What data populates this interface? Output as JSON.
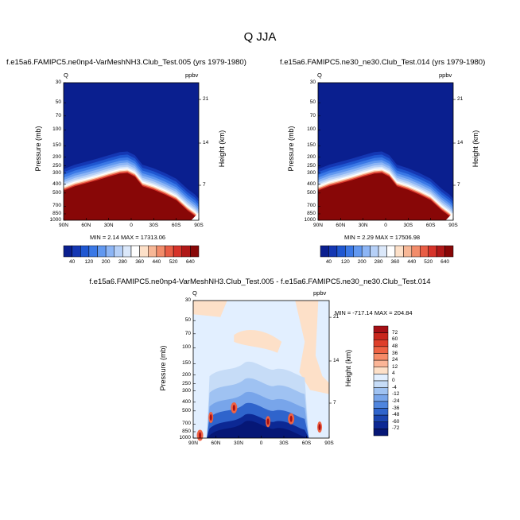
{
  "figure": {
    "title": "Q JJA"
  },
  "chart_data": [
    {
      "type": "heatmap",
      "name": "model-1",
      "title": "f.e15a6.FAMIPC5.ne0np4-VarMeshNH3.Club_Test.005 (yrs 1979-1980)",
      "variable": "Q",
      "units": "ppbv",
      "xlabel": "",
      "ylabel": "Pressure (mb)",
      "y2label": "Height (km)",
      "x_ticks": [
        "90N",
        "60N",
        "30N",
        "0",
        "30S",
        "60S",
        "90S"
      ],
      "y_ticks": [
        "30",
        "50",
        "70",
        "100",
        "150",
        "200",
        "250",
        "300",
        "400",
        "500",
        "700",
        "850",
        "1000"
      ],
      "y2_ticks": [
        "21",
        "14",
        "7"
      ],
      "min_max": "MIN =   2.14  MAX = 17313.06",
      "colorbar_labels": [
        "40",
        "120",
        "200",
        "280",
        "360",
        "440",
        "520",
        "640"
      ],
      "colorbar_colors": [
        "#0a1f8f",
        "#1437b3",
        "#1f57d1",
        "#3a78e6",
        "#6198f0",
        "#8cb5f5",
        "#b6d0f7",
        "#dbe8fa",
        "#ffffff",
        "#fde0c8",
        "#f7b796",
        "#f28c6a",
        "#e85d45",
        "#d6332a",
        "#b01818",
        "#880707"
      ],
      "description_text": "",
      "boundary_profile": [
        {
          "lat": 90,
          "p": 470
        },
        {
          "lat": 75,
          "p": 420
        },
        {
          "lat": 60,
          "p": 390
        },
        {
          "lat": 45,
          "p": 360
        },
        {
          "lat": 30,
          "p": 330
        },
        {
          "lat": 15,
          "p": 305
        },
        {
          "lat": 5,
          "p": 300
        },
        {
          "lat": -5,
          "p": 330
        },
        {
          "lat": -15,
          "p": 420
        },
        {
          "lat": -30,
          "p": 460
        },
        {
          "lat": -45,
          "p": 520
        },
        {
          "lat": -60,
          "p": 600
        },
        {
          "lat": -75,
          "p": 780
        },
        {
          "lat": -85,
          "p": 900
        },
        {
          "lat": -90,
          "p": 1000
        }
      ]
    },
    {
      "type": "heatmap",
      "name": "model-2",
      "title": "f.e15a6.FAMIPC5.ne30_ne30.Club_Test.014 (yrs 1979-1980)",
      "variable": "Q",
      "units": "ppbv",
      "ylabel": "Pressure (mb)",
      "y2label": "Height (km)",
      "x_ticks": [
        "90N",
        "60N",
        "30N",
        "0",
        "30S",
        "60S",
        "90S"
      ],
      "y_ticks": [
        "30",
        "50",
        "70",
        "100",
        "150",
        "200",
        "250",
        "300",
        "400",
        "500",
        "700",
        "850",
        "1000"
      ],
      "y2_ticks": [
        "21",
        "14",
        "7"
      ],
      "min_max": "MIN =   2.29  MAX = 17506.98",
      "colorbar_labels": [
        "40",
        "120",
        "200",
        "280",
        "360",
        "440",
        "520",
        "640"
      ],
      "colorbar_colors": [
        "#0a1f8f",
        "#1437b3",
        "#1f57d1",
        "#3a78e6",
        "#6198f0",
        "#8cb5f5",
        "#b6d0f7",
        "#dbe8fa",
        "#ffffff",
        "#fde0c8",
        "#f7b796",
        "#f28c6a",
        "#e85d45",
        "#d6332a",
        "#b01818",
        "#880707"
      ],
      "boundary_profile": [
        {
          "lat": 90,
          "p": 470
        },
        {
          "lat": 75,
          "p": 420
        },
        {
          "lat": 60,
          "p": 390
        },
        {
          "lat": 45,
          "p": 360
        },
        {
          "lat": 30,
          "p": 330
        },
        {
          "lat": 15,
          "p": 305
        },
        {
          "lat": 5,
          "p": 300
        },
        {
          "lat": -5,
          "p": 330
        },
        {
          "lat": -15,
          "p": 420
        },
        {
          "lat": -30,
          "p": 460
        },
        {
          "lat": -45,
          "p": 520
        },
        {
          "lat": -60,
          "p": 600
        },
        {
          "lat": -75,
          "p": 780
        },
        {
          "lat": -85,
          "p": 900
        },
        {
          "lat": -90,
          "p": 1000
        }
      ]
    },
    {
      "type": "heatmap",
      "name": "difference",
      "title": "f.e15a6.FAMIPC5.ne0np4-VarMeshNH3.Club_Test.005 - f.e15a6.FAMIPC5.ne30_ne30.Club_Test.014",
      "variable": "Q",
      "units": "ppbv",
      "ylabel": "Pressure (mb)",
      "y2label": "Height (km)",
      "x_ticks": [
        "90N",
        "60N",
        "30N",
        "0",
        "30S",
        "60S",
        "90S"
      ],
      "y_ticks": [
        "30",
        "50",
        "70",
        "100",
        "150",
        "200",
        "250",
        "300",
        "400",
        "500",
        "700",
        "850",
        "1000"
      ],
      "y2_ticks": [
        "21",
        "14",
        "7"
      ],
      "min_max": "MIN = -717.14  MAX = 204.84",
      "colorbar_labels": [
        "72",
        "60",
        "48",
        "36",
        "24",
        "12",
        "4",
        "0",
        "-4",
        "-12",
        "-24",
        "-36",
        "-48",
        "-60",
        "-72"
      ],
      "colorbar_colors": [
        "#a50f15",
        "#c8261c",
        "#de3f2a",
        "#ee6243",
        "#f68b68",
        "#fbb597",
        "#fde0c8",
        "#e2efff",
        "#c6dcf7",
        "#9fc2f2",
        "#78a5ea",
        "#4f85de",
        "#2f64cc",
        "#1a44b0",
        "#0c2894",
        "#061776"
      ]
    }
  ]
}
